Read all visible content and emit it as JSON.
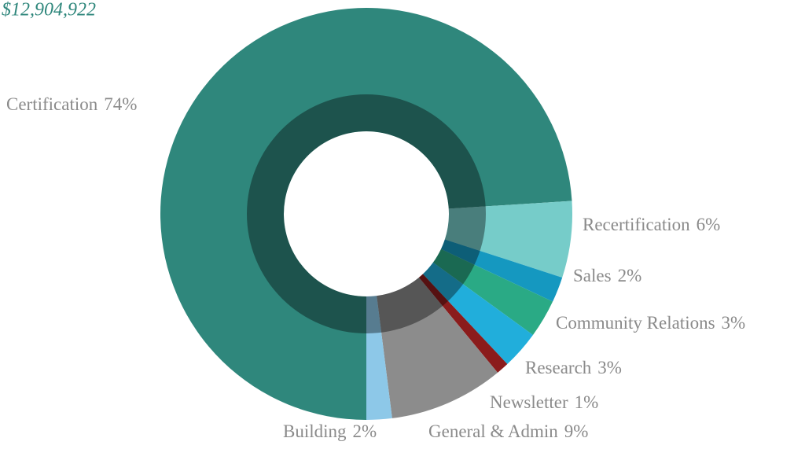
{
  "chart_data": {
    "type": "donut",
    "title": "$12,904,922",
    "categories": [
      "Certification",
      "Recertification",
      "Sales",
      "Community Relations",
      "Research",
      "Newsletter",
      "General & Admin",
      "Building"
    ],
    "values": [
      74,
      6,
      2,
      3,
      3,
      1,
      9,
      2
    ],
    "value_labels": [
      "74%",
      "6%",
      "2%",
      "3%",
      "3%",
      "1%",
      "9%",
      "2%"
    ],
    "colors": [
      "#2f877c",
      "#76ccc9",
      "#1598c0",
      "#2aaa85",
      "#21aedb",
      "#8b1c1c",
      "#8c8c8c",
      "#8dc8e8"
    ]
  }
}
